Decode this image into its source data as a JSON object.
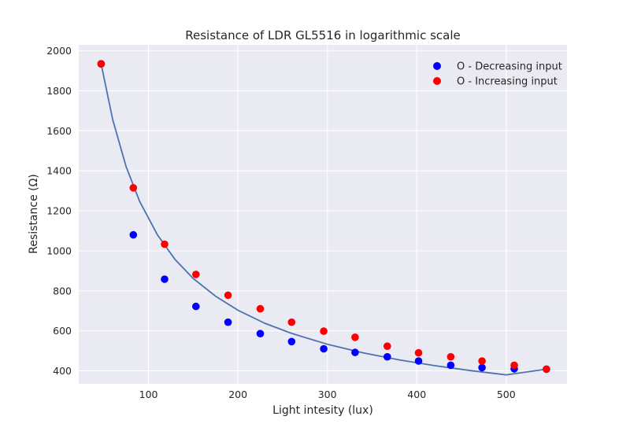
{
  "chart_data": {
    "type": "scatter",
    "title": "Resistance of LDR GL5516 in logarithmic scale",
    "xlabel": "Light intesity (lux)",
    "ylabel": "Resistance (Ω)",
    "xlim": [
      22,
      568
    ],
    "ylim": [
      335,
      2030
    ],
    "x_ticks": [
      100,
      200,
      300,
      400,
      500
    ],
    "y_ticks": [
      400,
      600,
      800,
      1000,
      1200,
      1400,
      1600,
      1800,
      2000
    ],
    "grid": true,
    "legend_position": "top-right",
    "series": [
      {
        "name": "O - Decreasing input",
        "color": "#0000ff",
        "kind": "points",
        "x": [
          47,
          83,
          118,
          153,
          189,
          225,
          260,
          296,
          331,
          367,
          402,
          438,
          473,
          509,
          545
        ],
        "y": [
          1935,
          1080,
          858,
          722,
          643,
          586,
          546,
          510,
          492,
          470,
          449,
          428,
          416,
          410,
          408
        ]
      },
      {
        "name": "O - Increasing input",
        "color": "#ff0000",
        "kind": "points",
        "x": [
          47,
          83,
          118,
          153,
          189,
          225,
          260,
          296,
          331,
          367,
          402,
          438,
          473,
          509,
          545
        ],
        "y": [
          1935,
          1315,
          1033,
          882,
          778,
          710,
          643,
          598,
          568,
          523,
          490,
          470,
          449,
          428,
          408
        ]
      },
      {
        "kind": "line",
        "color": "#4c72b0",
        "x": [
          47,
          60,
          75,
          90,
          110,
          130,
          150,
          175,
          200,
          230,
          260,
          300,
          340,
          380,
          420,
          460,
          500,
          545
        ],
        "y": [
          1935,
          1655,
          1420,
          1248,
          1080,
          955,
          862,
          773,
          703,
          638,
          587,
          533,
          490,
          455,
          426,
          401,
          380,
          408
        ]
      }
    ]
  }
}
